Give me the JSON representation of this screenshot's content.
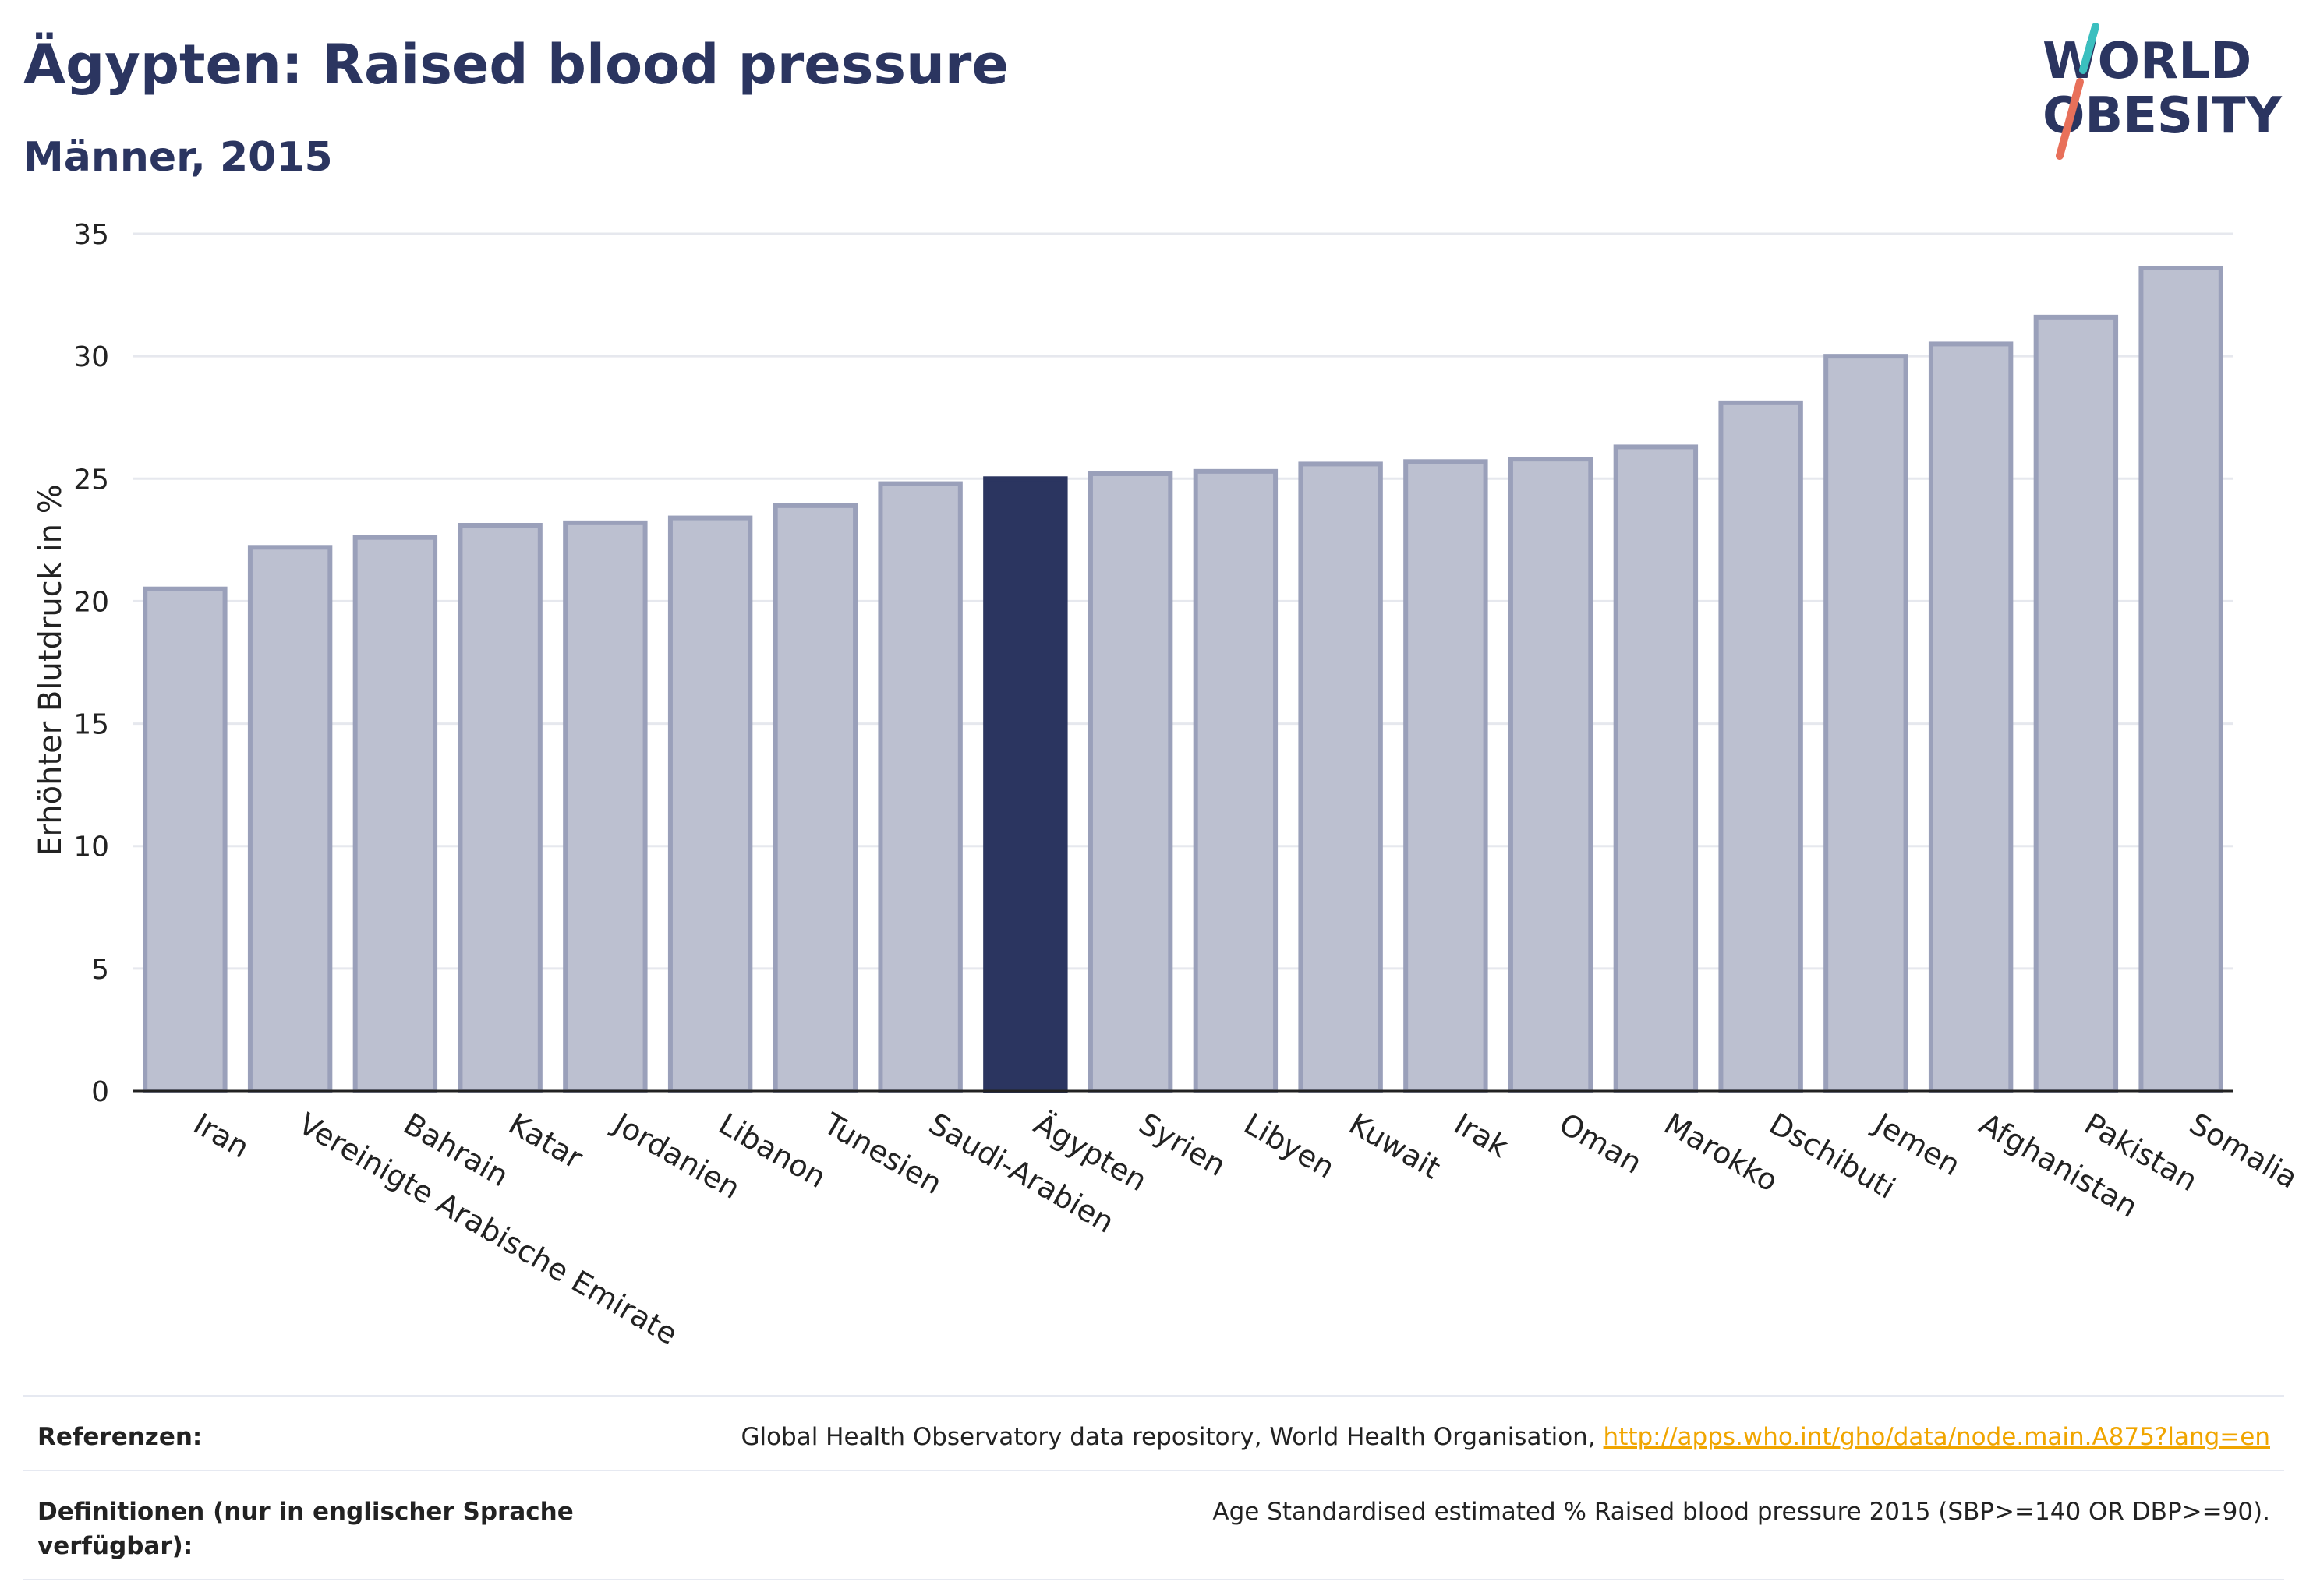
{
  "header": {
    "title": "Ägypten: Raised blood pressure",
    "subtitle": "Männer, 2015"
  },
  "logo": {
    "line1": "WORLD",
    "line2": "OBESITY",
    "colors": {
      "text": "#2b3560",
      "slash_top": "#3bbfbf",
      "slash_bottom": "#e8705a"
    }
  },
  "colors": {
    "bar": "#bcc0d0",
    "bar_edge": "#9aa0ba",
    "highlight": "#2b3560",
    "grid": "#e6e8ee",
    "axis": "#222222",
    "text": "#2b3560"
  },
  "chart_data": {
    "type": "bar",
    "ylabel": "Erhöhter Blutdruck in %",
    "ylim": [
      0,
      35
    ],
    "yticks": [
      0,
      5,
      10,
      15,
      20,
      25,
      30,
      35
    ],
    "grid": true,
    "highlight": "Ägypten",
    "categories": [
      "Iran",
      "Vereinigte Arabische Emirate",
      "Bahrain",
      "Katar",
      "Jordanien",
      "Libanon",
      "Tunesien",
      "Saudi-Arabien",
      "Ägypten",
      "Syrien",
      "Libyen",
      "Kuwait",
      "Irak",
      "Oman",
      "Marokko",
      "Dschibuti",
      "Jemen",
      "Afghanistan",
      "Pakistan",
      "Somalia"
    ],
    "values": [
      20.5,
      22.2,
      22.6,
      23.1,
      23.2,
      23.4,
      23.9,
      24.8,
      25.0,
      25.2,
      25.3,
      25.6,
      25.7,
      25.8,
      26.3,
      28.1,
      30.0,
      30.5,
      31.6,
      33.6
    ]
  },
  "references": {
    "sources_label": "Referenzen:",
    "sources_text": "Global Health Observatory data repository, World Health Organisation, ",
    "sources_link": "http://apps.who.int/gho/data/node.main.A875?lang=en",
    "definitions_label": "Definitionen (nur in englischer Sprache verfügbar):",
    "definitions_text": "Age Standardised estimated % Raised blood pressure 2015 (SBP>=140 OR DBP>=90)."
  }
}
